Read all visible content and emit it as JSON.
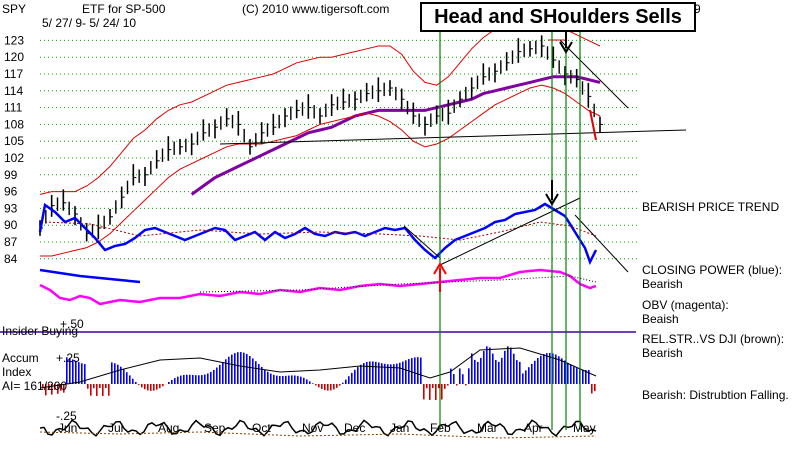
{
  "header": {
    "ticker": "SPY",
    "fund": "ETF for SP-500",
    "date_range": "5/ 27/ 9- 5/ 24/ 10",
    "copyright": "(C) 2010 www.tigersoft.com",
    "banner": "Head and SHoulders Sells",
    "banner_suffix": "9"
  },
  "side_labels": {
    "trend": "BEARISH PRICE TREND",
    "closing_power_1": "CLOSING POWER (blue):",
    "closing_power_2": "Bearish",
    "obv_1": "OBV (magenta):",
    "obv_2": "Beaish",
    "relstr_1": "REL.STR..VS DJI (brown):",
    "relstr_2": "Bearish",
    "accum_text": "Bearish:  Distrubtion Falling."
  },
  "indicator_labels": {
    "insider": "Insider Buying",
    "plus50": "+.50",
    "accum_1": "Accum",
    "accum_2": "Index",
    "ai": "AI= 161/200",
    "plus25": "+.25",
    "minus25": "-.25"
  },
  "colors": {
    "grid": "#00a000",
    "signal": "#008000",
    "band": "#e00000",
    "ma": "#8000a0",
    "closing_power": "#0000ff",
    "obv": "#ff00ff",
    "arrow_up": "#ff0000",
    "accum_pos": "#0000ff",
    "accum_neg": "#cc0000",
    "insider_line": "#4000a0"
  },
  "chart_data": {
    "type": "line",
    "title": "SPY ETF for SP-500 — Head and Shoulders Sells",
    "y_ticks": [
      123,
      120,
      117,
      114,
      111,
      108,
      105,
      102,
      99,
      96,
      93,
      90,
      87,
      84
    ],
    "ylim": [
      82,
      124.5
    ],
    "months": [
      "Jun",
      "Jul",
      "Aug",
      "Sep",
      "Oct",
      "Nov",
      "Dec",
      "Jan",
      "Feb",
      "Mar",
      "Apr",
      "May"
    ],
    "price_close": [
      89.5,
      93.5,
      94.0,
      92.0,
      88.5,
      89.5,
      91.5,
      95.0,
      98.5,
      99.0,
      101.5,
      103.5,
      104.0,
      104.5,
      106.5,
      107.5,
      109.0,
      108.0,
      104.0,
      106.5,
      107.5,
      109.5,
      110.5,
      111.0,
      109.5,
      111.5,
      112.0,
      112.5,
      113.5,
      114.0,
      114.5,
      112.5,
      109.5,
      108.0,
      109.5,
      110.0,
      112.5,
      114.5,
      116.5,
      117.5,
      119.0,
      121.0,
      121.5,
      122.0,
      119.5,
      117.0,
      116.0,
      113.0,
      108.0
    ],
    "series": [
      {
        "name": "Upper band",
        "values": [
          95.5,
          96.0,
          96.0,
          96.0,
          97.0,
          98.5,
          100.5,
          103.0,
          105.5,
          107.0,
          109.0,
          110.5,
          111.5,
          112.0,
          113.0,
          114.0,
          115.0,
          115.5,
          116.0,
          116.5,
          117.0,
          118.0,
          119.0,
          119.5,
          120.0,
          120.0,
          120.5,
          121.0,
          121.5,
          122.0,
          122.0,
          120.5,
          117.5,
          115.5,
          115.0,
          116.5,
          119.0,
          121.5,
          123.5,
          125.0,
          125.5,
          126.0,
          126.5,
          126.5,
          126.0,
          125.0,
          124.0,
          123.0,
          122.0
        ]
      },
      {
        "name": "Moving average",
        "values": [
          null,
          null,
          null,
          null,
          null,
          null,
          null,
          null,
          null,
          null,
          null,
          null,
          null,
          95.5,
          97.0,
          98.5,
          99.5,
          100.5,
          101.5,
          102.5,
          103.5,
          104.5,
          105.5,
          106.5,
          107.0,
          107.5,
          108.5,
          109.5,
          110.0,
          110.5,
          110.5,
          110.5,
          110.5,
          110.5,
          111.0,
          111.5,
          112.0,
          112.5,
          113.5,
          114.0,
          114.5,
          115.0,
          115.5,
          116.0,
          116.5,
          116.5,
          116.5,
          116.0,
          115.5
        ]
      },
      {
        "name": "Lower band",
        "values": [
          84.5,
          84.5,
          85.0,
          85.5,
          86.0,
          87.0,
          88.5,
          90.5,
          92.5,
          94.5,
          96.5,
          98.5,
          100.0,
          101.0,
          102.0,
          103.0,
          104.0,
          104.5,
          104.5,
          104.5,
          105.0,
          105.5,
          106.0,
          107.0,
          108.0,
          108.5,
          109.0,
          109.5,
          110.0,
          109.5,
          108.5,
          107.0,
          105.0,
          104.0,
          104.5,
          105.5,
          107.0,
          108.5,
          110.0,
          111.5,
          112.5,
          113.5,
          114.5,
          115.0,
          114.5,
          113.5,
          112.0,
          110.5,
          109.5
        ]
      }
    ],
    "neckline": [
      {
        "x": 0.3,
        "y": 104.5
      },
      {
        "x": 0.95,
        "y": 107.0
      }
    ]
  }
}
